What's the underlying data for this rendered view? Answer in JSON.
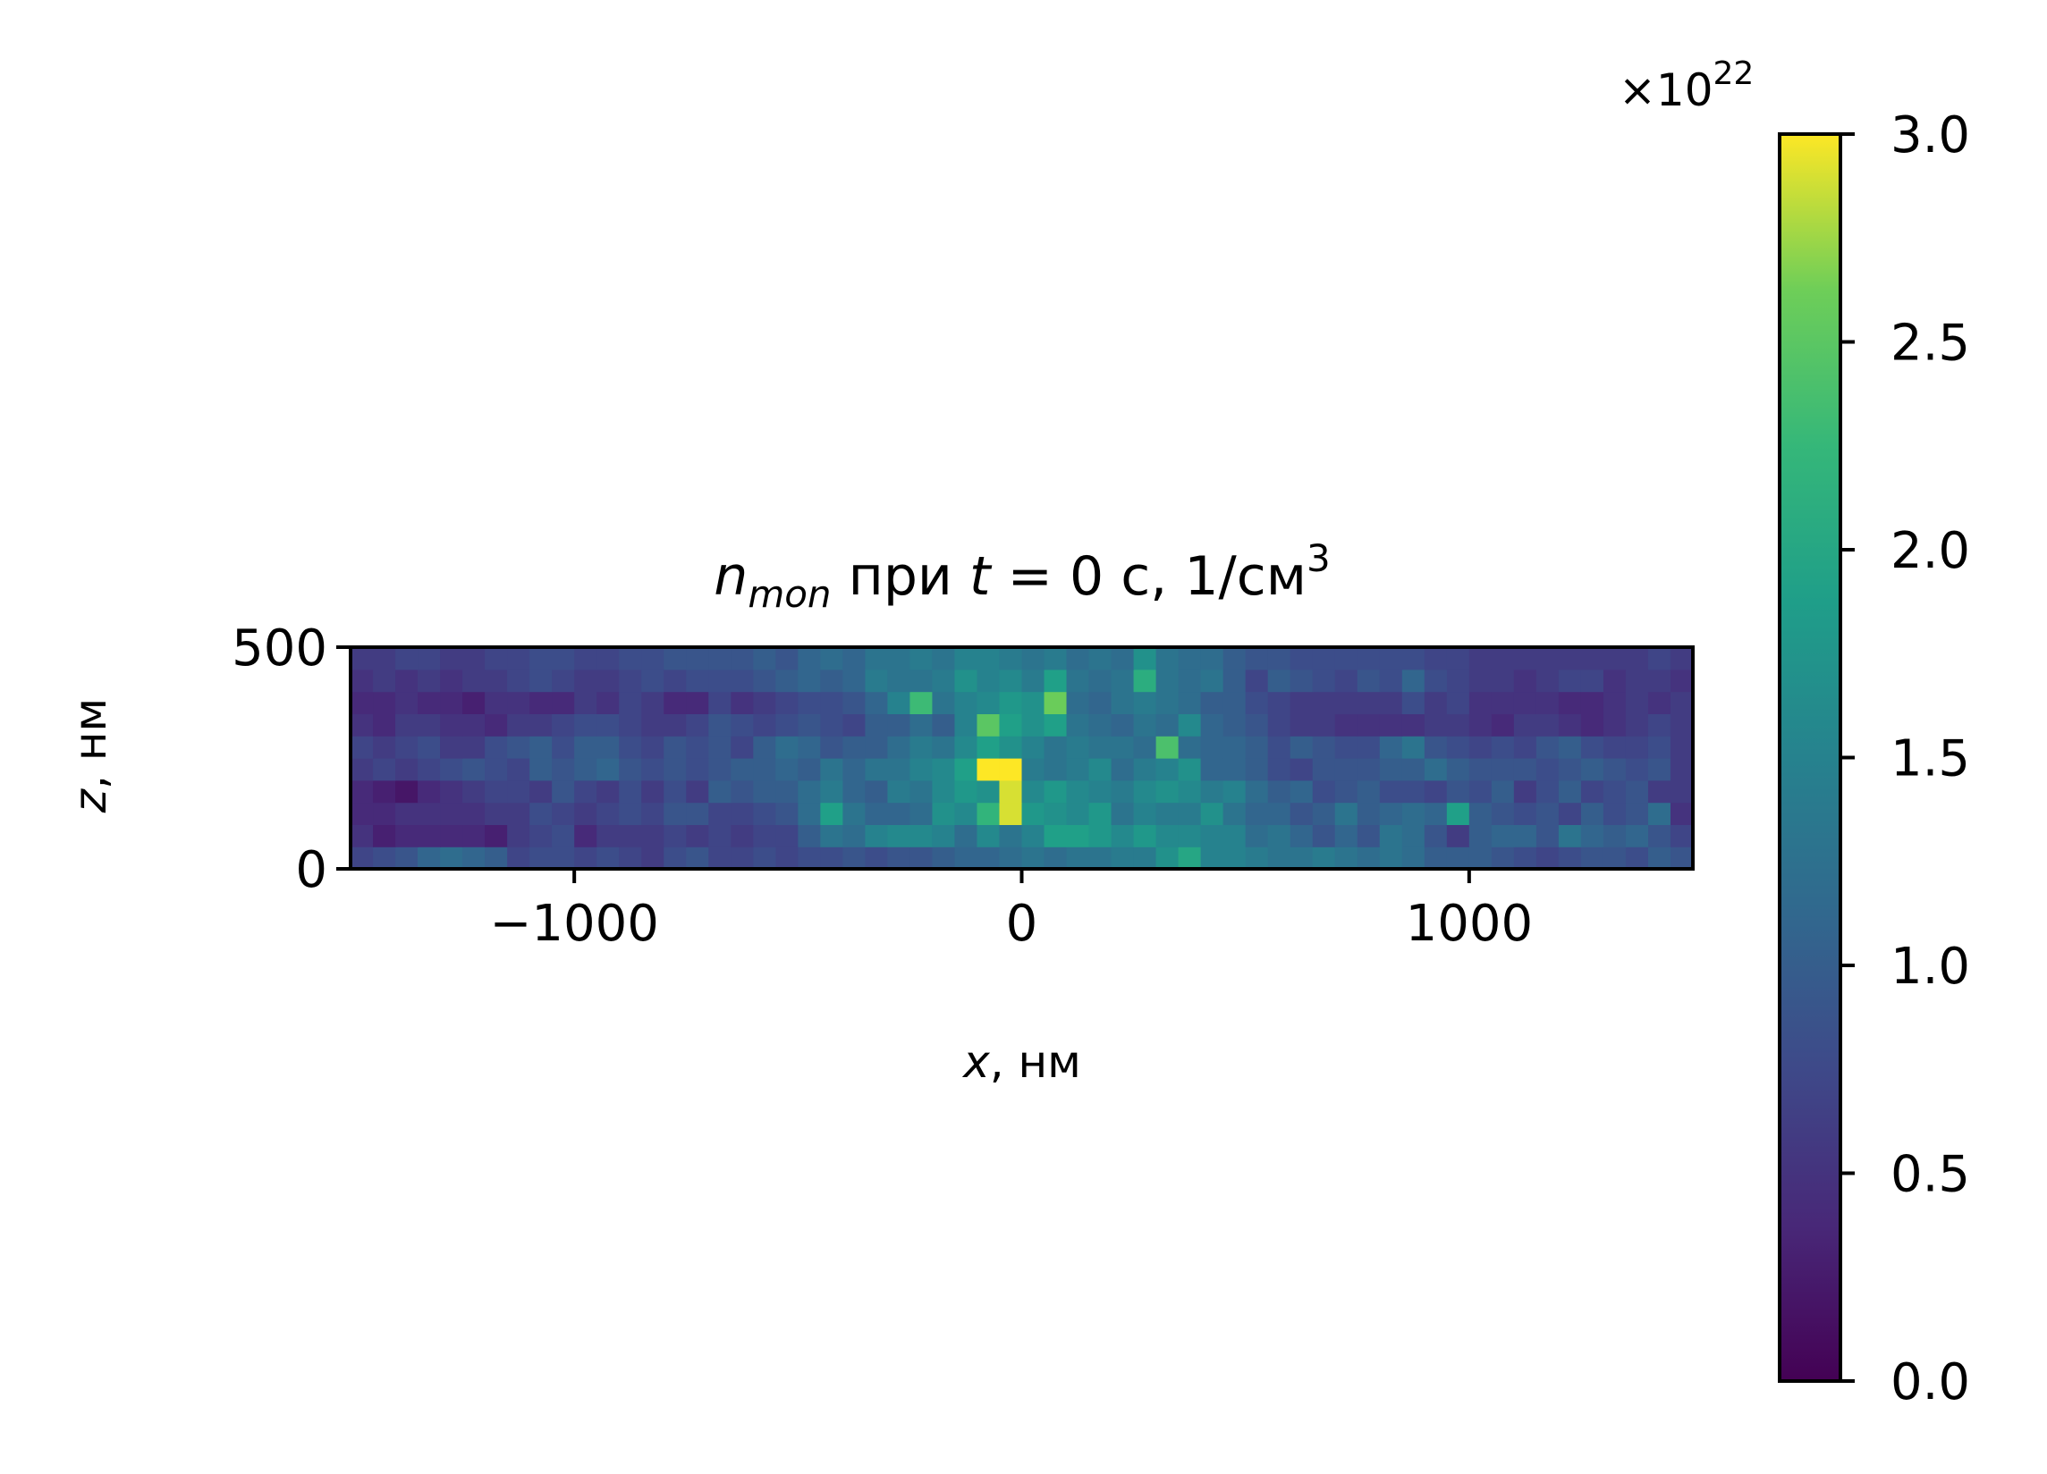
{
  "chart_data": [
    {
      "type": "heatmap",
      "title": {
        "main": "n",
        "sub": "mon",
        "middle": " при ",
        "tvar": "t",
        "rest": " = 0 с, 1/см",
        "sup": "3"
      },
      "xlabel": {
        "var": "x",
        "rest": ", нм"
      },
      "ylabel": {
        "var": "z",
        "rest": ", нм"
      },
      "xlim": [
        -1500,
        1500
      ],
      "ylim": [
        0,
        500
      ],
      "xticks": [
        -1000,
        0,
        1000
      ],
      "xtick_labels": [
        "−1000",
        "0",
        "1000"
      ],
      "yticks": [
        0,
        500
      ],
      "ytick_labels": [
        "0",
        "500"
      ],
      "nx": 60,
      "nz": 10,
      "cell_size_nm": 50,
      "values_note": "z-rows ordered bottom (z=0) to top (z=500); values in units of 1e22 1/см^3",
      "values": [
        [
          0.7,
          0.8,
          0.9,
          1.1,
          1.2,
          1.1,
          1.0,
          0.7,
          0.8,
          0.8,
          0.7,
          0.8,
          0.7,
          0.6,
          0.8,
          0.9,
          0.7,
          0.7,
          0.8,
          0.7,
          0.8,
          0.8,
          0.9,
          0.8,
          0.9,
          0.9,
          1.0,
          1.1,
          1.1,
          1.2,
          1.3,
          1.2,
          1.3,
          1.3,
          1.4,
          1.4,
          1.7,
          2.0,
          1.5,
          1.5,
          1.4,
          1.3,
          1.3,
          1.4,
          1.3,
          1.2,
          1.3,
          1.2,
          1.0,
          1.0,
          1.0,
          0.9,
          0.8,
          0.7,
          0.8,
          0.9,
          0.9,
          0.8,
          1.0,
          0.9
        ],
        [
          0.5,
          0.3,
          0.4,
          0.4,
          0.4,
          0.4,
          0.3,
          0.6,
          0.7,
          0.8,
          0.4,
          0.6,
          0.6,
          0.6,
          0.7,
          0.6,
          0.7,
          0.6,
          0.7,
          0.7,
          1.0,
          1.3,
          1.2,
          1.5,
          1.6,
          1.6,
          1.5,
          1.2,
          1.6,
          1.3,
          1.5,
          1.9,
          1.9,
          1.8,
          1.6,
          1.8,
          1.6,
          1.6,
          1.5,
          1.5,
          1.2,
          1.3,
          1.1,
          0.9,
          1.1,
          0.9,
          1.3,
          1.2,
          0.9,
          0.6,
          1.0,
          1.1,
          1.1,
          0.9,
          1.3,
          1.1,
          1.0,
          1.1,
          0.9,
          0.7
        ],
        [
          0.4,
          0.4,
          0.5,
          0.5,
          0.5,
          0.5,
          0.6,
          0.6,
          0.8,
          0.7,
          0.6,
          0.7,
          0.8,
          0.7,
          0.9,
          0.9,
          0.7,
          0.7,
          0.8,
          0.9,
          1.2,
          1.9,
          1.3,
          1.1,
          1.1,
          1.2,
          1.7,
          1.6,
          2.2,
          2.9,
          1.8,
          1.7,
          1.6,
          1.8,
          1.3,
          1.5,
          1.4,
          1.4,
          1.7,
          1.3,
          1.1,
          1.1,
          0.9,
          1.0,
          1.3,
          1.0,
          1.1,
          1.2,
          1.1,
          1.9,
          1.0,
          0.9,
          0.8,
          0.9,
          0.7,
          1.0,
          0.8,
          0.9,
          1.2,
          0.5
        ],
        [
          0.4,
          0.3,
          0.2,
          0.4,
          0.5,
          0.6,
          0.7,
          0.7,
          0.6,
          0.9,
          0.7,
          0.6,
          0.8,
          0.6,
          0.8,
          0.6,
          1.0,
          0.9,
          1.0,
          1.0,
          1.2,
          1.4,
          1.1,
          1.0,
          1.4,
          1.3,
          1.6,
          1.8,
          1.7,
          2.9,
          1.6,
          1.8,
          1.6,
          1.5,
          1.4,
          1.6,
          1.7,
          1.6,
          1.4,
          1.5,
          1.2,
          1.0,
          1.1,
          0.8,
          0.9,
          1.0,
          0.8,
          0.8,
          0.7,
          0.9,
          0.8,
          1.0,
          0.6,
          0.8,
          1.0,
          0.7,
          0.8,
          0.9,
          0.6,
          0.6
        ],
        [
          0.6,
          0.7,
          0.6,
          0.7,
          0.8,
          0.9,
          0.8,
          0.7,
          1.0,
          0.9,
          1.0,
          1.1,
          0.9,
          0.8,
          0.9,
          0.8,
          0.9,
          1.0,
          1.0,
          1.1,
          1.0,
          1.3,
          1.1,
          1.3,
          1.3,
          1.5,
          1.6,
          1.9,
          3.0,
          3.0,
          1.4,
          1.3,
          1.4,
          1.6,
          1.2,
          1.4,
          1.5,
          1.7,
          1.1,
          1.1,
          1.0,
          0.8,
          0.7,
          0.9,
          0.9,
          0.9,
          1.0,
          1.0,
          1.2,
          1.0,
          0.9,
          0.9,
          0.9,
          0.8,
          0.9,
          1.0,
          0.9,
          0.8,
          0.9,
          0.6
        ],
        [
          0.7,
          0.6,
          0.7,
          0.8,
          0.6,
          0.6,
          0.8,
          0.9,
          1.0,
          0.8,
          1.0,
          1.0,
          0.8,
          0.7,
          0.9,
          0.8,
          0.9,
          0.7,
          1.0,
          1.2,
          1.1,
          0.9,
          1.0,
          1.0,
          1.2,
          1.4,
          1.3,
          1.6,
          1.9,
          1.7,
          1.5,
          1.3,
          1.4,
          1.3,
          1.3,
          1.2,
          2.4,
          1.2,
          1.1,
          1.1,
          1.0,
          0.8,
          1.0,
          0.9,
          0.8,
          0.8,
          1.1,
          1.3,
          0.9,
          0.8,
          0.7,
          0.8,
          0.7,
          0.9,
          1.0,
          0.8,
          0.7,
          0.7,
          0.8,
          0.6
        ],
        [
          0.5,
          0.4,
          0.6,
          0.6,
          0.5,
          0.5,
          0.4,
          0.6,
          0.6,
          0.7,
          0.8,
          0.8,
          0.7,
          0.6,
          0.6,
          0.7,
          0.9,
          0.8,
          0.7,
          0.8,
          0.9,
          0.8,
          0.7,
          1.0,
          1.0,
          1.2,
          1.0,
          1.5,
          2.5,
          1.9,
          1.7,
          1.9,
          1.3,
          1.2,
          1.1,
          1.3,
          1.2,
          1.6,
          1.1,
          1.0,
          0.9,
          0.7,
          0.6,
          0.6,
          0.5,
          0.5,
          0.5,
          0.5,
          0.6,
          0.6,
          0.5,
          0.4,
          0.6,
          0.6,
          0.5,
          0.4,
          0.5,
          0.6,
          0.7,
          0.6
        ],
        [
          0.4,
          0.4,
          0.5,
          0.4,
          0.4,
          0.3,
          0.5,
          0.5,
          0.4,
          0.4,
          0.6,
          0.5,
          0.7,
          0.6,
          0.4,
          0.4,
          0.7,
          0.5,
          0.6,
          0.7,
          0.8,
          0.8,
          0.9,
          1.1,
          1.5,
          2.3,
          1.3,
          1.5,
          1.6,
          1.8,
          1.7,
          2.6,
          1.2,
          1.1,
          1.3,
          1.4,
          1.3,
          1.2,
          1.0,
          1.0,
          0.8,
          0.7,
          0.6,
          0.6,
          0.6,
          0.6,
          0.6,
          0.8,
          0.6,
          0.7,
          0.5,
          0.5,
          0.5,
          0.5,
          0.4,
          0.4,
          0.5,
          0.6,
          0.5,
          0.6
        ],
        [
          0.5,
          0.6,
          0.5,
          0.6,
          0.5,
          0.6,
          0.6,
          0.7,
          0.8,
          0.7,
          0.6,
          0.6,
          0.7,
          0.8,
          0.7,
          0.8,
          0.8,
          0.8,
          0.9,
          1.0,
          1.1,
          1.0,
          1.1,
          1.4,
          1.3,
          1.3,
          1.4,
          1.7,
          1.5,
          1.6,
          1.4,
          1.9,
          1.3,
          1.2,
          1.3,
          2.1,
          1.3,
          1.2,
          1.3,
          1.0,
          0.7,
          1.0,
          0.9,
          0.8,
          0.7,
          0.9,
          0.8,
          1.1,
          0.8,
          0.7,
          0.6,
          0.6,
          0.5,
          0.6,
          0.7,
          0.7,
          0.5,
          0.6,
          0.6,
          0.5
        ],
        [
          0.6,
          0.6,
          0.7,
          0.7,
          0.6,
          0.6,
          0.7,
          0.7,
          0.8,
          0.8,
          0.7,
          0.7,
          0.8,
          0.8,
          0.9,
          0.9,
          0.9,
          0.9,
          1.0,
          0.9,
          1.1,
          1.2,
          1.1,
          1.3,
          1.3,
          1.4,
          1.3,
          1.5,
          1.5,
          1.4,
          1.3,
          1.4,
          1.2,
          1.3,
          1.2,
          1.7,
          1.3,
          1.2,
          1.2,
          1.0,
          0.9,
          0.9,
          0.8,
          0.8,
          0.8,
          0.8,
          0.8,
          0.8,
          0.7,
          0.7,
          0.6,
          0.6,
          0.6,
          0.6,
          0.6,
          0.6,
          0.6,
          0.6,
          0.7,
          0.6
        ]
      ],
      "colorbar": {
        "colormap": "viridis",
        "vmin": 0,
        "vmax": 3.0,
        "ticks": [
          0.0,
          0.5,
          1.0,
          1.5,
          2.0,
          2.5,
          3.0
        ],
        "tick_labels": [
          "0.0",
          "0.5",
          "1.0",
          "1.5",
          "2.0",
          "2.5",
          "3.0"
        ],
        "offset_base": "×10",
        "offset_exp": "22"
      },
      "grid": false,
      "legend": "none"
    }
  ]
}
